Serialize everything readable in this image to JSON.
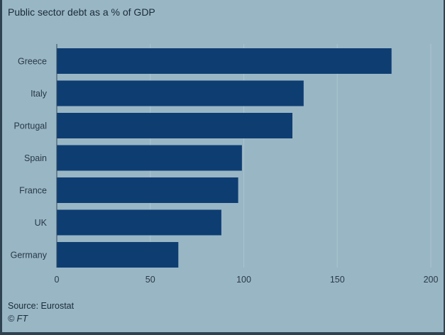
{
  "title": "Public sector debt as a % of GDP",
  "source": "Source: Eurostat",
  "copyright": "© FT",
  "colors": {
    "background": "#99b6c5",
    "bar": "#0e3d72",
    "gridline": "#aac3d0",
    "text": "#1b2b38"
  },
  "chart_data": {
    "type": "bar",
    "orientation": "horizontal",
    "title": "Public sector debt as a % of GDP",
    "categories": [
      "Greece",
      "Italy",
      "Portugal",
      "Spain",
      "France",
      "UK",
      "Germany"
    ],
    "values": [
      179,
      132,
      126,
      99,
      97,
      88,
      65
    ],
    "xlim": [
      0,
      200
    ],
    "xticks": [
      0,
      50,
      100,
      150,
      200
    ],
    "xlabel": "",
    "ylabel": "",
    "grid": true,
    "legend": "none"
  }
}
